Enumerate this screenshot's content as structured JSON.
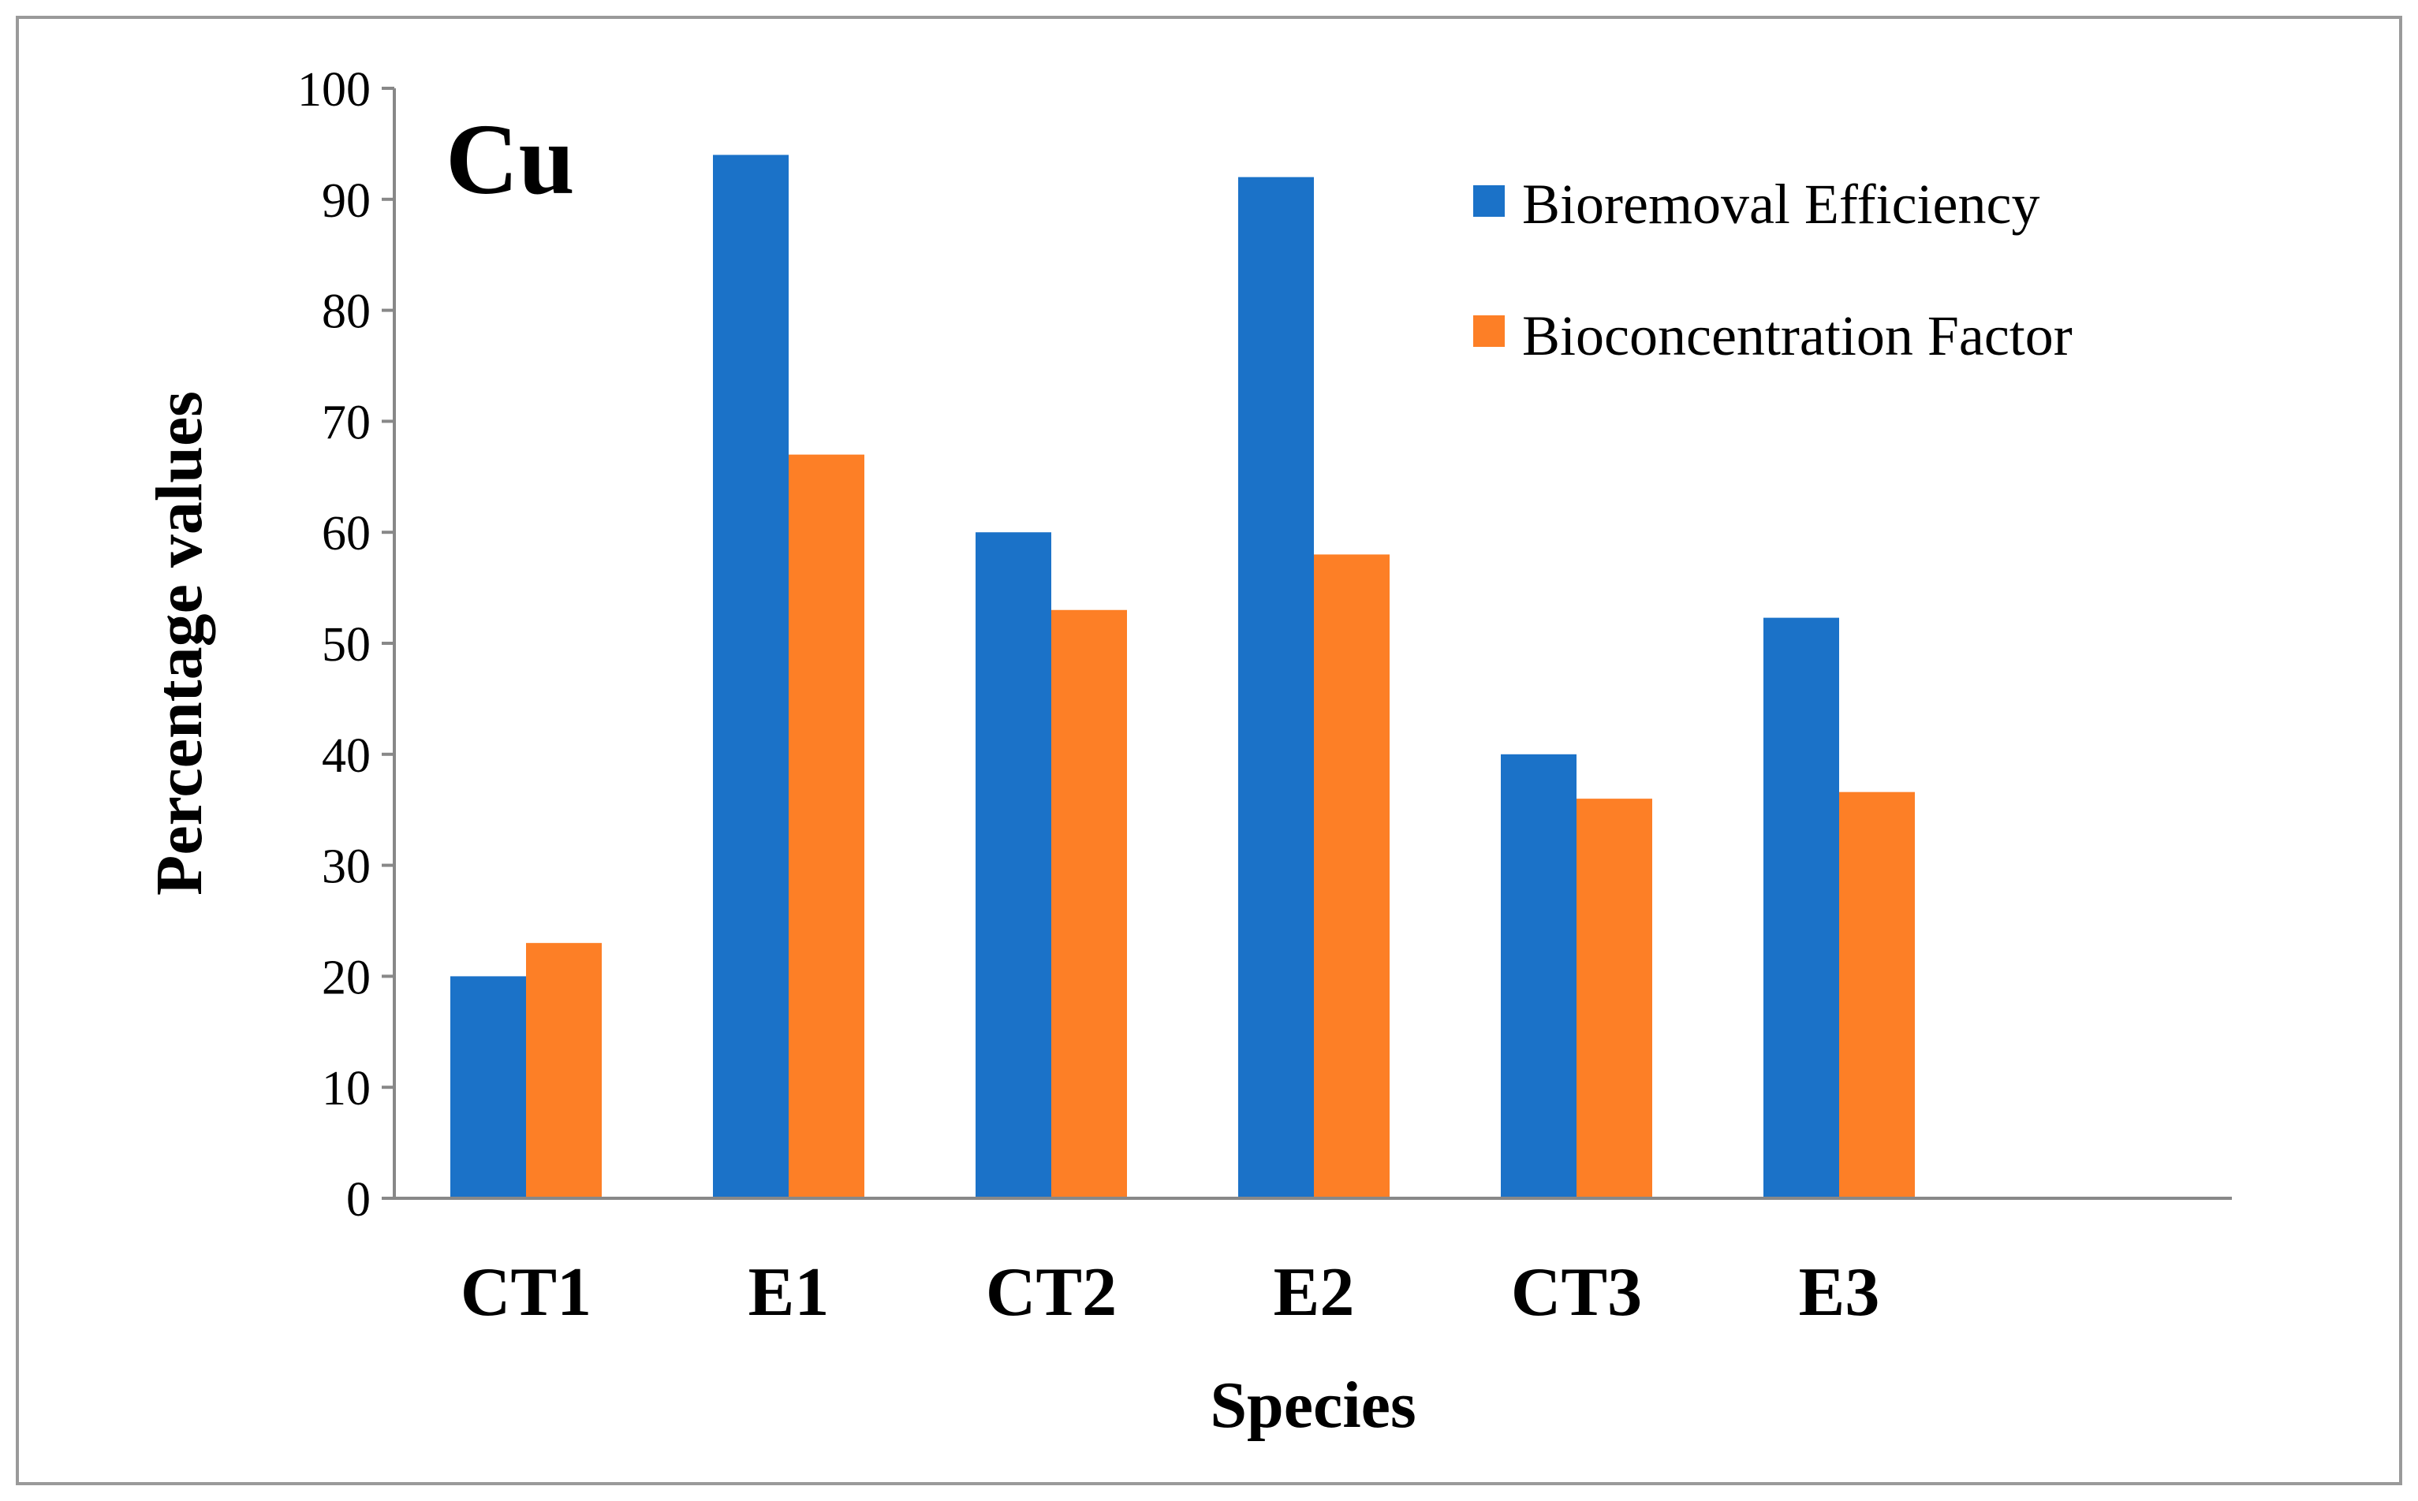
{
  "chart_data": {
    "type": "bar",
    "title": "Cu",
    "xlabel": "Species",
    "ylabel": "Percentage values",
    "categories": [
      "CT1",
      "E1",
      "CT2",
      "E2",
      "CT3",
      "E3"
    ],
    "ylim": [
      0,
      100
    ],
    "yticks": [
      0,
      10,
      20,
      30,
      40,
      50,
      60,
      70,
      80,
      90,
      100
    ],
    "grid": false,
    "legend_position": "top-right",
    "series": [
      {
        "name": "Bioremoval Efficiency",
        "color": "#1b72c8",
        "values": [
          20,
          94,
          60,
          92,
          40,
          52.3
        ]
      },
      {
        "name": "Bioconcentration Factor",
        "color": "#fd7f26",
        "values": [
          23,
          67,
          53,
          58,
          36,
          36.6
        ]
      }
    ]
  }
}
